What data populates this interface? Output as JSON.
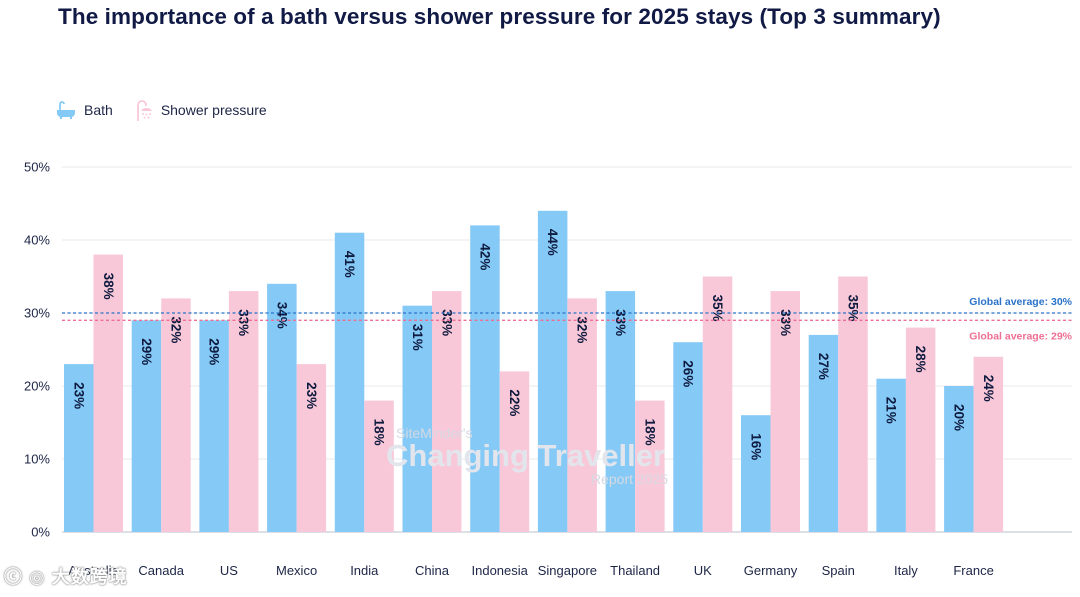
{
  "title": "The importance of a bath versus shower pressure for 2025 stays (Top 3 summary)",
  "legend": [
    {
      "label": "Bath",
      "icon": "bathtub-icon",
      "color": "#85c9f7"
    },
    {
      "label": "Shower pressure",
      "icon": "shower-icon",
      "color": "#f9c8d8"
    }
  ],
  "watermark": {
    "line1": "SiteMinder's",
    "line2": "Changing Traveller",
    "line3": "Report 2025"
  },
  "corner_mark": "ⓒ ◎ 大数跨境",
  "chart_data": {
    "type": "bar",
    "categories": [
      "Australia",
      "Canada",
      "US",
      "Mexico",
      "India",
      "China",
      "Indonesia",
      "Singapore",
      "Thailand",
      "UK",
      "Germany",
      "Spain",
      "Italy",
      "France"
    ],
    "series": [
      {
        "name": "Bath",
        "values": [
          23,
          29,
          29,
          34,
          41,
          31,
          42,
          44,
          33,
          26,
          16,
          27,
          21,
          20
        ],
        "color": "#85c9f7"
      },
      {
        "name": "Shower pressure",
        "values": [
          38,
          32,
          33,
          23,
          18,
          33,
          22,
          32,
          18,
          35,
          33,
          35,
          28,
          24
        ],
        "color": "#f9c8d8"
      }
    ],
    "value_suffix": "%",
    "ylim": [
      0,
      50
    ],
    "yticks": [
      "0%",
      "10%",
      "20%",
      "30%",
      "40%",
      "50%"
    ],
    "grid": true,
    "reference_lines": [
      {
        "label": "Global average: 30%",
        "value": 30,
        "color": "#2a73c9"
      },
      {
        "label": "Global average: 29%",
        "value": 29,
        "color": "#ee6f94"
      }
    ],
    "label_color": "#0e1a3e"
  }
}
